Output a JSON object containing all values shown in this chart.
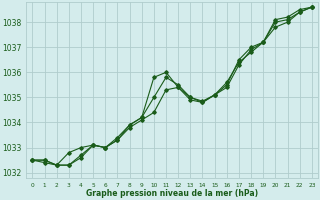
{
  "title": "Graphe pression niveau de la mer (hPa)",
  "bg_color": "#d4ecec",
  "grid_color": "#b0cccc",
  "line_color": "#1a5c1a",
  "marker_color": "#1a5c1a",
  "xlim": [
    -0.5,
    23.5
  ],
  "ylim": [
    1031.8,
    1038.8
  ],
  "yticks": [
    1032,
    1033,
    1034,
    1035,
    1036,
    1037,
    1038
  ],
  "xticks": [
    0,
    1,
    2,
    3,
    4,
    5,
    6,
    7,
    8,
    9,
    10,
    11,
    12,
    13,
    14,
    15,
    16,
    17,
    18,
    19,
    20,
    21,
    22,
    23
  ],
  "series1": {
    "x": [
      0,
      1,
      2,
      3,
      4,
      5,
      6,
      7,
      8,
      9,
      10,
      11,
      12,
      13,
      14,
      15,
      16,
      17,
      18,
      19,
      20,
      21,
      22,
      23
    ],
    "y": [
      1032.5,
      1032.5,
      1032.3,
      1032.3,
      1032.7,
      1033.1,
      1033.0,
      1033.4,
      1033.9,
      1034.2,
      1035.8,
      1036.0,
      1035.4,
      1035.0,
      1034.85,
      1035.1,
      1035.5,
      1036.5,
      1037.0,
      1037.2,
      1038.1,
      1038.2,
      1038.5,
      1038.6
    ]
  },
  "series2": {
    "x": [
      0,
      1,
      2,
      3,
      4,
      5,
      6,
      7,
      8,
      9,
      10,
      11,
      12,
      13,
      14,
      15,
      16,
      17,
      18,
      19,
      20,
      21,
      22,
      23
    ],
    "y": [
      1032.5,
      1032.4,
      1032.3,
      1032.8,
      1033.0,
      1033.1,
      1033.0,
      1033.3,
      1033.8,
      1034.1,
      1034.4,
      1035.3,
      1035.4,
      1034.9,
      1034.8,
      1035.1,
      1035.6,
      1036.4,
      1036.8,
      1037.2,
      1037.8,
      1038.0,
      1038.4,
      1038.6
    ]
  },
  "series3": {
    "x": [
      0,
      1,
      2,
      3,
      4,
      5,
      6,
      7,
      8,
      9,
      10,
      11,
      12,
      13,
      14,
      15,
      16,
      17,
      18,
      19,
      20,
      21,
      22,
      23
    ],
    "y": [
      1032.5,
      1032.5,
      1032.3,
      1032.3,
      1032.6,
      1033.1,
      1033.0,
      1033.3,
      1033.9,
      1034.2,
      1035.0,
      1035.8,
      1035.5,
      1035.0,
      1034.8,
      1035.1,
      1035.4,
      1036.3,
      1036.9,
      1037.2,
      1038.0,
      1038.1,
      1038.4,
      1038.6
    ]
  },
  "xlabel_fontsize": 5.5,
  "ytick_fontsize": 5.5,
  "xtick_fontsize": 4.2
}
